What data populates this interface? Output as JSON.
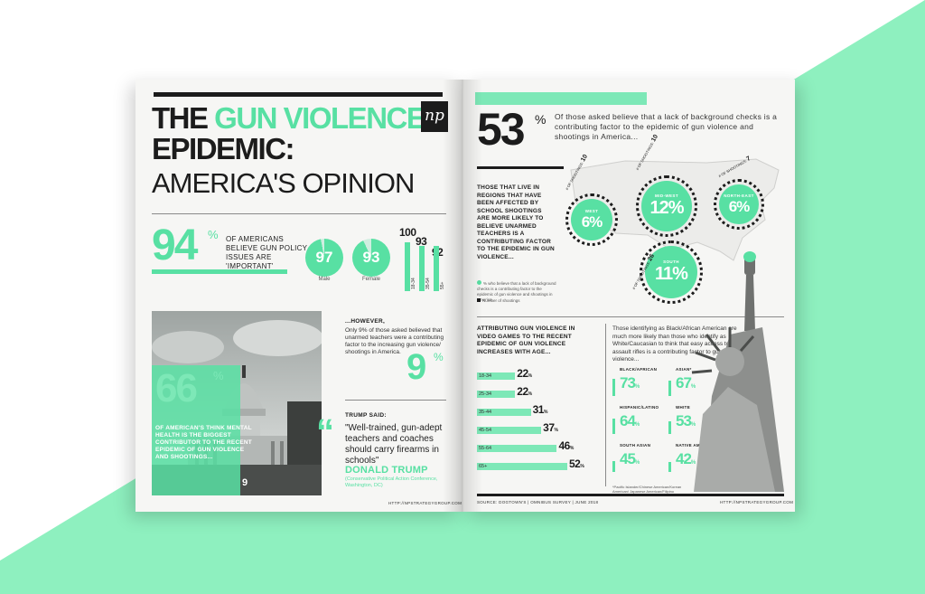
{
  "left_page": {
    "title_line1_dark": "THE",
    "title_line1_green": "GUN VIOLENCE",
    "title_line2": "EPIDEMIC:",
    "title_line3": "AMERICA'S OPINION",
    "logo": "np",
    "stat94": {
      "value": "94",
      "pct": "%",
      "text": "OF AMERICANS BELIEVE GUN POLICY ISSUES ARE 'IMPORTANT'"
    },
    "gender": [
      {
        "label": "Male",
        "value": "97",
        "percent": 97
      },
      {
        "label": "Female",
        "value": "93",
        "percent": 93
      }
    ],
    "age_groups": [
      {
        "label": "18-34",
        "value": "100",
        "percent": 100
      },
      {
        "label": "35-54",
        "value": "93",
        "percent": 93
      },
      {
        "label": "55+",
        "value": "92",
        "percent": 92
      }
    ],
    "stat66": {
      "value": "66",
      "pct": "%",
      "text": "OF AMERICAN'S THINK MENTAL HEALTH IS THE BIGGEST CONTRIBUTOR TO THE RECENT EPIDEMIC OF GUN VIOLENCE AND SHOOTINGS..."
    },
    "photo_number": "9",
    "however": {
      "head": "...HOWEVER,",
      "text": "Only 9% of those asked believed that unarmed teachers were a contributing factor to the increasing gun violence/ shootings in America.",
      "value": "9",
      "pct": "%"
    },
    "trump": {
      "head": "TRUMP SAID:",
      "quote_mark": "“",
      "quote": "\"Well-trained, gun-adept teachers and coaches should carry firearms in schools\"",
      "name": "DONALD TRUMP",
      "citation": "(Conservative Political Action Conference, Washington, DC)"
    },
    "footer_url": "HTTP://NPSTRATEGYGROUP.COM"
  },
  "right_page": {
    "stat53": {
      "value": "53",
      "pct": "%",
      "text": "Of those asked believe that a lack of background checks is a contributing factor to the epidemic of gun violence and shootings in America..."
    },
    "regions_text": "THOSE THAT LIVE IN REGIONS THAT HAVE BEEN AFFECTED BY SCHOOL SHOOTINGS ARE MORE LIKELY TO BELIEVE UNARMED TEACHERS IS A CONTRIBUTING FACTOR TO THE EPIDEMIC IN GUN VIOLENCE...",
    "legend_pct": "% who believe that a lack of background checks is a contributing factor to the epidemic of gun violence and shootings in America",
    "legend_shootings": "Number of shootings",
    "regions": [
      {
        "name": "WEST",
        "value": "6%",
        "shootings_label": "# OF SHOOTINGS:",
        "shootings": "10"
      },
      {
        "name": "MID-WEST",
        "value": "12%",
        "shootings_label": "# OF SHOOTINGS:",
        "shootings": "10"
      },
      {
        "name": "NORTH-EAST",
        "value": "6%",
        "shootings_label": "# OF SHOOTINGS:",
        "shootings": "7"
      },
      {
        "name": "SOUTH",
        "value": "11%",
        "shootings_label": "# OF SHOOTINGS:",
        "shootings": "26"
      }
    ],
    "video_head": "ATTRIBUTING GUN VIOLENCE IN VIDEO GAMES TO THE RECENT EPIDEMIC OF GUN VIOLENCE INCREASES WITH AGE...",
    "video_bars": [
      {
        "label": "18-34",
        "value": "22",
        "percent": 22
      },
      {
        "label": "25-34",
        "value": "22",
        "percent": 22
      },
      {
        "label": "35-44",
        "value": "31",
        "percent": 31
      },
      {
        "label": "45-54",
        "value": "37",
        "percent": 37
      },
      {
        "label": "55-64",
        "value": "46",
        "percent": 46
      },
      {
        "label": "65+",
        "value": "52",
        "percent": 52
      }
    ],
    "video_pct": "%",
    "eth_text": "Those identifying as Black/African American are much more likely than those who identify as White/Caucasian to think that easy access to assault rifles is a contributing factor to gun violence...",
    "ethnicities": [
      {
        "label": "BLACK/AFRICAN",
        "value": "73",
        "percent": 73
      },
      {
        "label": "ASIAN*",
        "value": "67",
        "percent": 67
      },
      {
        "label": "HISPANIC/LATINO",
        "value": "64",
        "percent": 64
      },
      {
        "label": "WHITE",
        "value": "53",
        "percent": 53
      },
      {
        "label": "SOUTH ASIAN",
        "value": "45",
        "percent": 45
      },
      {
        "label": "NATIVE AMERICAN",
        "value": "42",
        "percent": 42
      }
    ],
    "eth_pct": "%",
    "eth_foot": "*Pacific Islander/Chinese American/Korean American/ Japanese American/Filipino",
    "footer_source": "SOURCE: DOGTOWN'S | OMNIBUS SURVEY | JUNE 2018",
    "footer_url": "HTTP://NPSTRATEGYGROUP.COM"
  },
  "colors": {
    "accent": "#58e0a3",
    "accent_light": "#7de8b7",
    "ink": "#1c1c1c",
    "paper": "#f6f6f4"
  }
}
